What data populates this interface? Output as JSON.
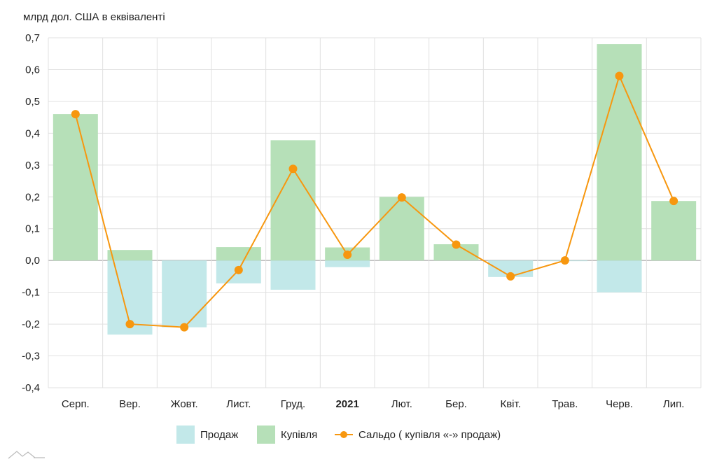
{
  "unit_label": "млрд дол. США в еквіваленті",
  "colors": {
    "sale": "#c2e8e9",
    "purchase": "#b6e0b8",
    "balance": "#f7970f",
    "grid": "#e0e0e0",
    "axis": "#999999"
  },
  "legend": {
    "sale": "Продаж",
    "purchase": "Купівля",
    "balance": "Сальдо ( купівля «-» продаж)"
  },
  "chart_data": {
    "type": "bar",
    "categories": [
      "Серп.",
      "Вер.",
      "Жовт.",
      "Лист.",
      "Груд.",
      "2021",
      "Лют.",
      "Бер.",
      "Квіт.",
      "Трав.",
      "Черв.",
      "Лип."
    ],
    "bold_categories": [
      "2021"
    ],
    "series": [
      {
        "name": "Продаж",
        "kind": "bar",
        "values": [
          0.0,
          -0.233,
          -0.21,
          -0.072,
          -0.092,
          -0.021,
          0.0,
          0.0,
          -0.052,
          -0.002,
          -0.1,
          0.0
        ]
      },
      {
        "name": "Купівля",
        "kind": "bar",
        "values": [
          0.46,
          0.033,
          0.0,
          0.042,
          0.378,
          0.041,
          0.2,
          0.051,
          0.0,
          0.0,
          0.68,
          0.187
        ]
      },
      {
        "name": "Сальдо ( купівля «-» продаж)",
        "kind": "line",
        "values": [
          0.46,
          -0.2,
          -0.21,
          -0.03,
          0.288,
          0.018,
          0.198,
          0.05,
          -0.05,
          0.0,
          0.58,
          0.187
        ]
      }
    ],
    "y_ticks": [
      "0,7",
      "0,6",
      "0,5",
      "0,4",
      "0,3",
      "0,2",
      "0,1",
      "0,0",
      "-0,1",
      "-0,2",
      "-0,3",
      "-0,4"
    ],
    "ylim": [
      -0.4,
      0.7
    ],
    "grid": true,
    "legend_position": "bottom"
  }
}
